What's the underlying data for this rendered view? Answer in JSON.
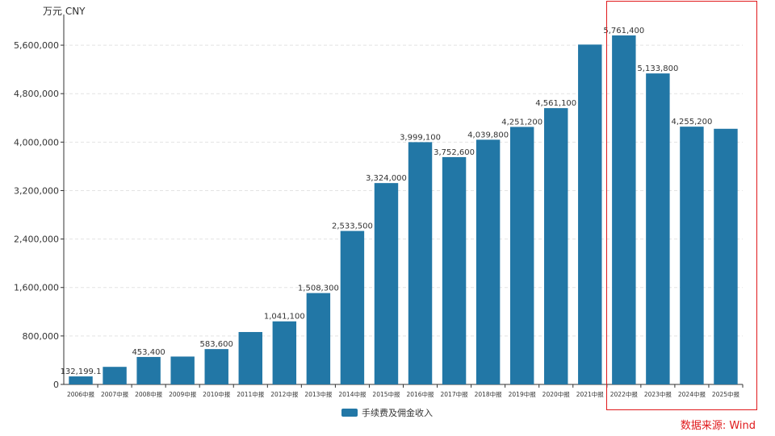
{
  "chart_data": {
    "type": "bar",
    "unit_label": "万元  CNY",
    "source": "数据来源: Wind",
    "categories": [
      "2006中报",
      "2007中报",
      "2008中报",
      "2009中报",
      "2010中报",
      "2011中报",
      "2012中报",
      "2013中报",
      "2014中报",
      "2015中报",
      "2016中报",
      "2017中报",
      "2018中报",
      "2019中报",
      "2020中报",
      "2021中报",
      "2022中报",
      "2023中报",
      "2024中报",
      "2025中报"
    ],
    "series": [
      {
        "name": "手续费及佣金收入",
        "values": [
          132199.1,
          290000,
          453400,
          460000,
          583600,
          865000,
          1041100,
          1508300,
          2533500,
          3324000,
          3999100,
          3752600,
          4039800,
          4251200,
          4561100,
          5610000,
          5761400,
          5133800,
          4255200,
          4220000
        ],
        "labels": [
          "132,199.1",
          "",
          "453,400",
          "",
          "583,600",
          "",
          "1,041,100",
          "1,508,300",
          "2,533,500",
          "3,324,000",
          "3,999,100",
          "3,752,600",
          "4,039,800",
          "4,251,200",
          "4,561,100",
          "",
          "5,761,400",
          "5,133,800",
          "4,255,200",
          ""
        ]
      }
    ],
    "yticks": [
      "0",
      "800,000",
      "1,600,000",
      "2,400,000",
      "3,200,000",
      "4,000,000",
      "4,800,000",
      "5,600,000"
    ],
    "ytick_values": [
      0,
      800000,
      1600000,
      2400000,
      3200000,
      4000000,
      4800000,
      5600000
    ],
    "ylim": [
      0,
      6000000
    ],
    "grid": true,
    "legend_position": "bottom-center",
    "highlight_categories": [
      "2022中报",
      "2023中报",
      "2024中报",
      "2025中报"
    ],
    "colors": {
      "bar": "#2277a6",
      "highlight_border": "#e0191b",
      "grid": "#e3e3e3",
      "axis": "#333333"
    }
  }
}
